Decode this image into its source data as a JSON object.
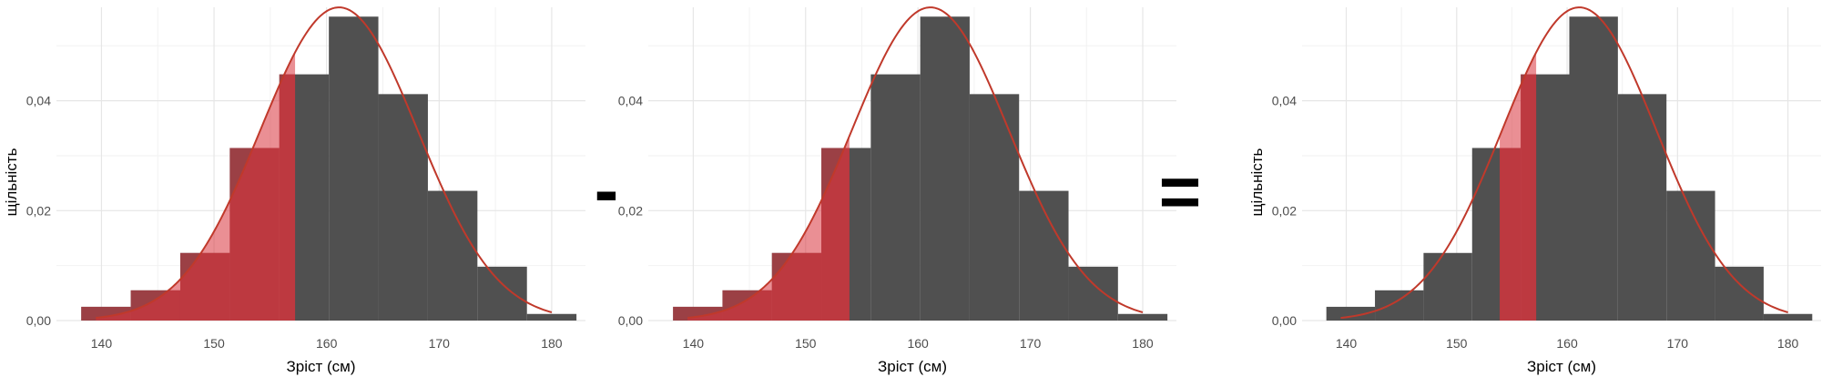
{
  "colors": {
    "bar": "#505050",
    "shade": "#d9333c",
    "curve": "#c0392b",
    "grid_major": "#e6e6e6",
    "grid_minor": "#f2f2f2",
    "tick_text": "#4d4d4d"
  },
  "operators": [
    "-",
    "="
  ],
  "chart_data": [
    {
      "type": "histogram",
      "xlabel": "Зріст (см)",
      "ylabel": "щільність",
      "xlim": [
        136,
        183
      ],
      "ylim": [
        0,
        0.057
      ],
      "xticks": [
        140,
        150,
        160,
        170,
        180
      ],
      "xtick_labels": [
        "140",
        "150",
        "160",
        "170",
        "180"
      ],
      "yticks": [
        0,
        0.02,
        0.04
      ],
      "ytick_labels": [
        "0,00",
        "0,02",
        "0,04"
      ],
      "bin_edges": [
        138.2,
        142.6,
        147.0,
        151.4,
        155.8,
        160.2,
        164.6,
        169.0,
        173.4,
        177.8,
        182.2
      ],
      "densities": [
        0.0025,
        0.0055,
        0.0123,
        0.0314,
        0.0448,
        0.0553,
        0.0412,
        0.0236,
        0.0098,
        0.0012
      ],
      "normal_curve": {
        "mean": 161.1,
        "sd": 7.0,
        "x_range": [
          139.5,
          180.0
        ]
      },
      "shaded_range": [
        138.2,
        157.2
      ],
      "grid": true
    },
    {
      "type": "histogram",
      "xlabel": "Зріст (см)",
      "ylabel": "",
      "xlim": [
        136,
        183
      ],
      "ylim": [
        0,
        0.057
      ],
      "xticks": [
        140,
        150,
        160,
        170,
        180
      ],
      "xtick_labels": [
        "140",
        "150",
        "160",
        "170",
        "180"
      ],
      "yticks": [
        0,
        0.02,
        0.04
      ],
      "ytick_labels": [
        "0,00",
        "0,02",
        "0,04"
      ],
      "bin_edges": [
        138.2,
        142.6,
        147.0,
        151.4,
        155.8,
        160.2,
        164.6,
        169.0,
        173.4,
        177.8,
        182.2
      ],
      "densities": [
        0.0025,
        0.0055,
        0.0123,
        0.0314,
        0.0448,
        0.0553,
        0.0412,
        0.0236,
        0.0098,
        0.0012
      ],
      "normal_curve": {
        "mean": 161.1,
        "sd": 7.0,
        "x_range": [
          139.5,
          180.0
        ]
      },
      "shaded_range": [
        138.2,
        153.9
      ],
      "grid": true
    },
    {
      "type": "histogram",
      "xlabel": "Зріст (см)",
      "ylabel": "щільність",
      "xlim": [
        136,
        183
      ],
      "ylim": [
        0,
        0.057
      ],
      "xticks": [
        140,
        150,
        160,
        170,
        180
      ],
      "xtick_labels": [
        "140",
        "150",
        "160",
        "170",
        "180"
      ],
      "yticks": [
        0,
        0.02,
        0.04
      ],
      "ytick_labels": [
        "0,00",
        "0,02",
        "0,04"
      ],
      "bin_edges": [
        138.2,
        142.6,
        147.0,
        151.4,
        155.8,
        160.2,
        164.6,
        169.0,
        173.4,
        177.8,
        182.2
      ],
      "densities": [
        0.0025,
        0.0055,
        0.0123,
        0.0314,
        0.0448,
        0.0553,
        0.0412,
        0.0236,
        0.0098,
        0.0012
      ],
      "normal_curve": {
        "mean": 161.1,
        "sd": 7.0,
        "x_range": [
          139.5,
          180.0
        ]
      },
      "shaded_range": [
        153.9,
        157.2
      ],
      "grid": true
    }
  ]
}
